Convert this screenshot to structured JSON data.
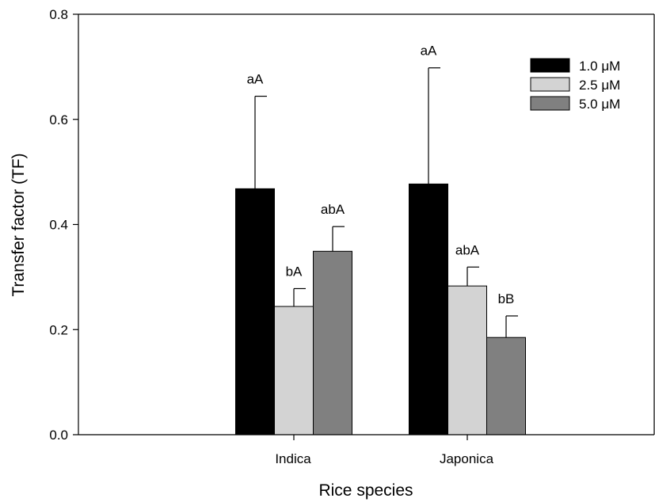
{
  "chart_data": {
    "type": "bar",
    "xlabel": "Rice species",
    "ylabel": "Transfer factor (TF)",
    "ylim": [
      0,
      0.8
    ],
    "yticks": [
      "0.0",
      "0.2",
      "0.4",
      "0.6",
      "0.8"
    ],
    "ytick_values": [
      0,
      0.2,
      0.4,
      0.6,
      0.8
    ],
    "categories": [
      "Indica",
      "Japonica"
    ],
    "legend_position": "top-right",
    "grid": false,
    "series": [
      {
        "name": "1.0 μM",
        "color": "#000000",
        "values": [
          0.468,
          0.477
        ],
        "errors": [
          0.176,
          0.221
        ],
        "labels": [
          "aA",
          "aA"
        ]
      },
      {
        "name": "2.5 μM",
        "color": "#d3d3d3",
        "values": [
          0.244,
          0.283
        ],
        "errors": [
          0.034,
          0.036
        ],
        "labels": [
          "bA",
          "abA"
        ]
      },
      {
        "name": "5.0 μM",
        "color": "#808080",
        "values": [
          0.349,
          0.185
        ],
        "errors": [
          0.047,
          0.041
        ],
        "labels": [
          "abA",
          "bB"
        ]
      }
    ]
  }
}
